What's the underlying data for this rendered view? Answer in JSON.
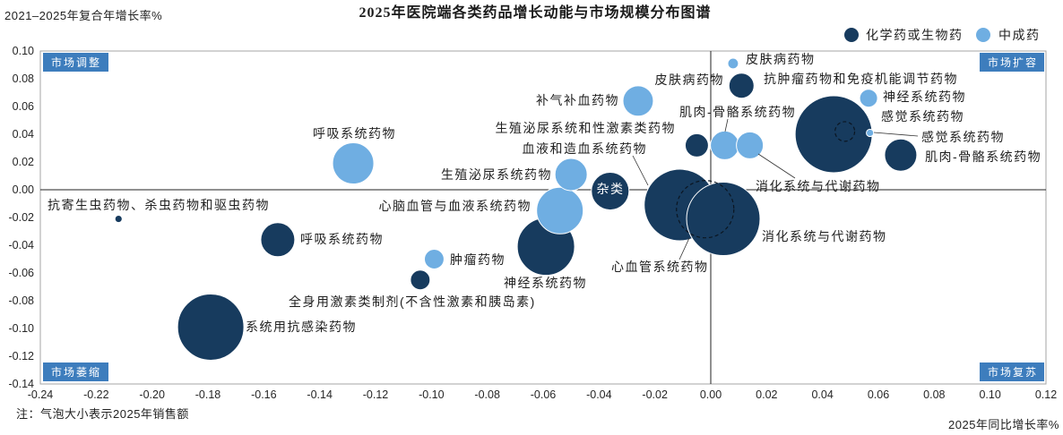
{
  "chart_data": {
    "type": "scatter",
    "title": "2025年医院端各类药品增长动能与市场规模分布图谱",
    "ylabel": "2021–2025年复合年增长率%",
    "xlabel": "2025年同比增长率%",
    "note": "注：气泡大小表示2025年销售额",
    "xlim": [
      -0.24,
      0.12
    ],
    "ylim": [
      -0.14,
      0.1
    ],
    "xticks": [
      "-0.24",
      "-0.22",
      "-0.20",
      "-0.18",
      "-0.16",
      "-0.14",
      "-0.12",
      "-0.10",
      "-0.08",
      "-0.06",
      "-0.04",
      "-0.02",
      "0.00",
      "0.02",
      "0.04",
      "0.06",
      "0.08",
      "0.10",
      "0.12"
    ],
    "yticks": [
      "0.10",
      "0.08",
      "0.06",
      "0.04",
      "0.02",
      "0.00",
      "-0.02",
      "-0.04",
      "-0.06",
      "-0.08",
      "-0.10",
      "-0.12",
      "-0.14"
    ],
    "grid": false,
    "legend_position": "top-right",
    "quadrants": {
      "top_left": "市场调整",
      "top_right": "市场扩容",
      "bottom_left": "市场萎缩",
      "bottom_right": "市场复苏"
    },
    "series": [
      {
        "name": "化学药或生物药",
        "color": "#173b5e",
        "points": [
          {
            "label": "抗寄生虫药物、杀虫药物和驱虫药物",
            "x": -0.212,
            "y": -0.021,
            "size": 0.9
          },
          {
            "label": "呼吸系统药物",
            "x": -0.155,
            "y": -0.036,
            "size": 19.5
          },
          {
            "label": "系统用抗感染药物",
            "x": -0.179,
            "y": -0.099,
            "size": 74.0
          },
          {
            "label": "全身用激素类制剂(不含性激素和胰岛素)",
            "x": -0.104,
            "y": -0.065,
            "size": 6.5
          },
          {
            "label": "神经系统药物",
            "x": -0.059,
            "y": -0.041,
            "size": 55.4
          },
          {
            "label": "杂类",
            "x": -0.036,
            "y": -0.001,
            "size": 23.9
          },
          {
            "label": "血液和造血系统药物",
            "x": -0.011,
            "y": -0.011,
            "size": 86.5
          },
          {
            "label": "心血管系统药物",
            "x": -0.002,
            "y": -0.014,
            "size": 55.4
          },
          {
            "label": "消化系统与代谢药物",
            "x": 0.0045,
            "y": -0.021,
            "size": 90.9
          },
          {
            "label": "生殖泌尿系统和性激素类药物",
            "x": -0.005,
            "y": 0.032,
            "size": 9.1
          },
          {
            "label": "皮肤病药物",
            "x": 0.011,
            "y": 0.075,
            "size": 10.6
          },
          {
            "label": "抗肿瘤药物和免疫机能调节药物",
            "x": 0.044,
            "y": 0.04,
            "size": 100
          },
          {
            "label": "感觉系统药物",
            "x": 0.048,
            "y": 0.042,
            "size": 6.5
          },
          {
            "label": "肌肉-骨骼系统药物",
            "x": 0.068,
            "y": 0.025,
            "size": 17.5
          }
        ]
      },
      {
        "name": "中成药",
        "color": "#6faee2",
        "points": [
          {
            "label": "呼吸系统药物",
            "x": -0.128,
            "y": 0.019,
            "size": 28.6
          },
          {
            "label": "心脑血管与血液系统药物",
            "x": -0.054,
            "y": -0.015,
            "size": 36.6
          },
          {
            "label": "肿瘤药物",
            "x": -0.099,
            "y": -0.05,
            "size": 6.5
          },
          {
            "label": "生殖泌尿系统药物",
            "x": -0.05,
            "y": 0.011,
            "size": 17.5
          },
          {
            "label": "补气补血药物",
            "x": -0.026,
            "y": 0.064,
            "size": 15.6
          },
          {
            "label": "皮肤病药物",
            "x": 0.008,
            "y": 0.091,
            "size": 1.9
          },
          {
            "label": "肌肉-骨骼系统药物",
            "x": 0.005,
            "y": 0.032,
            "size": 13.8
          },
          {
            "label": "消化系统与代谢药物",
            "x": 0.014,
            "y": 0.032,
            "size": 12.2
          },
          {
            "label": "神经系统药物",
            "x": 0.0565,
            "y": 0.066,
            "size": 5.4
          },
          {
            "label": "感觉系统药物",
            "x": 0.057,
            "y": 0.041,
            "size": 0.9
          }
        ]
      }
    ]
  }
}
